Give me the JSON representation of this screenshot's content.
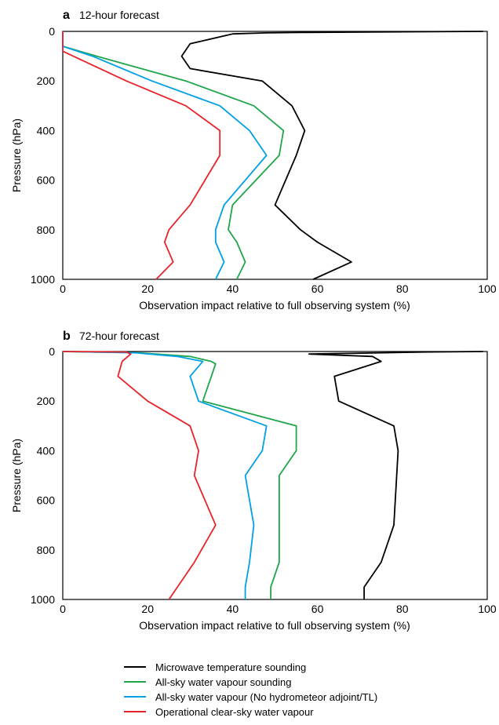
{
  "chart_data": [
    {
      "type": "line",
      "panel": "a",
      "title": "12-hour forecast",
      "xlabel": "Observation impact relative to full observing system (%)",
      "ylabel": "Pressure (hPa)",
      "xlim": [
        0,
        100
      ],
      "ylim": [
        1000,
        0
      ],
      "y_inverted": true,
      "xticks": [
        "0",
        "20",
        "40",
        "60",
        "80",
        "100"
      ],
      "yticks": [
        "0",
        "200",
        "400",
        "600",
        "800",
        "1000"
      ],
      "grid": false,
      "series": [
        {
          "name": "Microwave temperature sounding",
          "color": "#000000",
          "x": [
            99,
            57,
            48,
            40,
            30,
            28,
            30,
            47,
            54,
            57,
            55,
            50,
            56,
            60,
            68,
            59
          ],
          "y": [
            0,
            4,
            6,
            10,
            50,
            100,
            150,
            200,
            300,
            400,
            500,
            700,
            800,
            850,
            930,
            1000
          ]
        },
        {
          "name": "All-sky water vapour sounding",
          "color": "#1fa54a",
          "x": [
            0,
            0,
            8,
            29,
            45,
            52,
            51,
            40,
            39,
            41,
            43,
            41
          ],
          "y": [
            0,
            60,
            100,
            200,
            300,
            400,
            500,
            700,
            800,
            850,
            930,
            1000
          ]
        },
        {
          "name": "All-sky water vapour (No hydrometeor adjoint/TL)",
          "color": "#00a0e4",
          "x": [
            0,
            0,
            7,
            21,
            37,
            44,
            48,
            38,
            36,
            36,
            38,
            36
          ],
          "y": [
            0,
            60,
            100,
            200,
            300,
            400,
            500,
            700,
            800,
            850,
            930,
            1000
          ]
        },
        {
          "name": "Operational clear-sky water vapour",
          "color": "#e8232a",
          "x": [
            0,
            0,
            15,
            29,
            37,
            37,
            30,
            25,
            24,
            26,
            22
          ],
          "y": [
            0,
            80,
            200,
            300,
            400,
            500,
            700,
            800,
            850,
            930,
            1000
          ]
        }
      ]
    },
    {
      "type": "line",
      "panel": "b",
      "title": "72-hour forecast",
      "xlabel": "Observation impact relative to full observing system (%)",
      "ylabel": "Pressure (hPa)",
      "xlim": [
        0,
        100
      ],
      "ylim": [
        1000,
        0
      ],
      "y_inverted": true,
      "xticks": [
        "0",
        "20",
        "40",
        "60",
        "80",
        "100"
      ],
      "yticks": [
        "0",
        "200",
        "400",
        "600",
        "800",
        "1000"
      ],
      "grid": false,
      "series": [
        {
          "name": "Microwave temperature sounding",
          "color": "#000000",
          "x": [
            99,
            86,
            58,
            73,
            75,
            64,
            65,
            78,
            79,
            78,
            75,
            71,
            71
          ],
          "y": [
            0,
            2,
            10,
            20,
            40,
            100,
            200,
            300,
            400,
            700,
            850,
            950,
            1000
          ]
        },
        {
          "name": "All-sky water vapour sounding",
          "color": "#1fa54a",
          "x": [
            0,
            18,
            30,
            35,
            36,
            33,
            55,
            55,
            51,
            51,
            51,
            49,
            49
          ],
          "y": [
            0,
            5,
            20,
            40,
            50,
            200,
            300,
            400,
            500,
            700,
            850,
            950,
            1000
          ]
        },
        {
          "name": "All-sky water vapour (No hydrometeor adjoint/TL)",
          "color": "#00a0e4",
          "x": [
            0,
            17,
            27,
            33,
            30,
            32,
            48,
            47,
            43,
            45,
            44,
            43,
            43
          ],
          "y": [
            0,
            5,
            20,
            40,
            100,
            200,
            300,
            400,
            500,
            700,
            850,
            950,
            1000
          ]
        },
        {
          "name": "Operational clear-sky water vapour",
          "color": "#e8232a",
          "x": [
            0,
            15,
            16,
            14,
            13,
            20,
            30,
            32,
            31,
            36,
            31,
            27,
            25
          ],
          "y": [
            0,
            2,
            10,
            40,
            100,
            200,
            300,
            400,
            500,
            700,
            850,
            950,
            1000
          ]
        }
      ]
    }
  ],
  "legend": {
    "placement": "bottom",
    "items": [
      {
        "label": "Microwave temperature sounding",
        "color": "#000000"
      },
      {
        "label": "All-sky water vapour sounding",
        "color": "#1fa54a"
      },
      {
        "label": "All-sky water vapour (No hydrometeor adjoint/TL)",
        "color": "#00a0e4"
      },
      {
        "label": "Operational clear-sky water vapour",
        "color": "#e8232a"
      }
    ]
  }
}
